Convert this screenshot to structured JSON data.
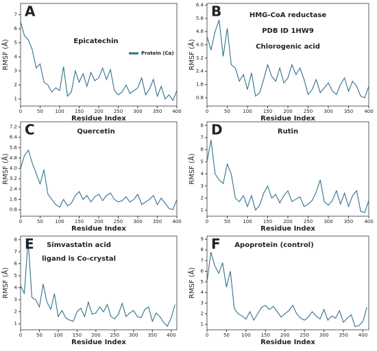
{
  "chart_data": [
    {
      "type": "line",
      "label": "A",
      "annotations": [
        "Epicatechin"
      ],
      "x_label": "Residue Index",
      "y_label": "RMSF (Å)",
      "x": [
        0,
        10,
        20,
        30,
        40,
        50,
        60,
        70,
        80,
        90,
        100,
        110,
        120,
        130,
        140,
        150,
        160,
        170,
        180,
        190,
        200,
        210,
        220,
        230,
        240,
        250,
        260,
        270,
        280,
        290,
        300,
        310,
        320,
        330,
        340,
        350,
        360,
        370,
        380,
        390,
        400
      ],
      "series": [
        {
          "name": "Protein (Cα)",
          "color": "#2f6f8c",
          "values": [
            6.5,
            5.5,
            5.2,
            4.5,
            3.2,
            3.5,
            2.2,
            2.0,
            1.5,
            1.8,
            1.6,
            3.3,
            1.2,
            1.5,
            3.0,
            2.2,
            2.8,
            1.9,
            2.9,
            2.3,
            2.5,
            3.2,
            2.4,
            3.1,
            1.6,
            1.3,
            1.5,
            2.0,
            1.4,
            1.6,
            1.8,
            2.5,
            1.3,
            1.7,
            2.4,
            1.2,
            1.9,
            1.0,
            1.3,
            0.9,
            1.6
          ]
        }
      ],
      "xlim": [
        0,
        400
      ],
      "xticks": [
        0,
        50,
        100,
        150,
        200,
        250,
        300,
        350,
        400
      ],
      "ylim": [
        0.5,
        7.8
      ],
      "yticks": [
        1,
        2,
        3,
        4,
        5,
        6,
        7
      ],
      "legend": "upper right"
    },
    {
      "type": "line",
      "label": "B",
      "annotations": [
        "HMG-CoA reductase",
        "PDB ID  1HW9",
        "Chlorogenic acid"
      ],
      "x_label": "Residue Index",
      "y_label": "RMSF (Å)",
      "x": [
        0,
        10,
        20,
        30,
        40,
        50,
        60,
        70,
        80,
        90,
        100,
        110,
        120,
        130,
        140,
        150,
        160,
        170,
        180,
        190,
        200,
        210,
        220,
        230,
        240,
        250,
        260,
        270,
        280,
        290,
        300,
        310,
        320,
        330,
        340,
        350,
        360,
        370,
        380,
        390,
        400
      ],
      "series": [
        {
          "color": "#2f6f8c",
          "values": [
            4.5,
            3.7,
            4.8,
            5.5,
            3.3,
            5.0,
            2.8,
            2.6,
            1.8,
            2.2,
            1.3,
            2.3,
            0.9,
            1.1,
            1.9,
            2.8,
            2.1,
            1.8,
            2.6,
            1.7,
            2.0,
            2.8,
            2.2,
            2.6,
            1.9,
            1.0,
            1.3,
            1.9,
            1.1,
            1.4,
            1.7,
            1.2,
            1.0,
            1.6,
            2.0,
            1.2,
            1.8,
            1.5,
            0.9,
            0.8,
            1.5
          ]
        }
      ],
      "xlim": [
        0,
        400
      ],
      "xticks": [
        0,
        50,
        100,
        150,
        200,
        250,
        300,
        350,
        400
      ],
      "ylim": [
        0.3,
        6.5
      ],
      "yticks": [
        0.8,
        1.6,
        2.4,
        3.2,
        {
          "value": 4,
          "label": "4.0"
        },
        4.8,
        5.6,
        6.4
      ]
    },
    {
      "type": "line",
      "label": "C",
      "annotations": [
        "Quercetin"
      ],
      "x_label": "Residue Index",
      "y_label": "RMSF (Å)",
      "x": [
        0,
        10,
        20,
        30,
        40,
        50,
        60,
        70,
        80,
        90,
        100,
        110,
        120,
        130,
        140,
        150,
        160,
        170,
        180,
        190,
        200,
        210,
        220,
        230,
        240,
        250,
        260,
        270,
        280,
        290,
        300,
        310,
        320,
        330,
        340,
        350,
        360,
        370,
        380,
        390,
        400
      ],
      "series": [
        {
          "color": "#2f6f8c",
          "values": [
            4.0,
            5.0,
            5.4,
            4.4,
            3.6,
            2.8,
            3.9,
            2.0,
            1.6,
            1.2,
            1.0,
            1.6,
            1.1,
            1.3,
            1.9,
            2.2,
            1.6,
            1.9,
            1.4,
            1.8,
            2.0,
            1.5,
            1.9,
            2.1,
            1.6,
            1.4,
            1.5,
            1.8,
            1.4,
            1.6,
            2.0,
            1.2,
            1.4,
            1.6,
            1.9,
            1.2,
            1.7,
            1.3,
            0.9,
            0.8,
            1.6
          ]
        }
      ],
      "xlim": [
        0,
        400
      ],
      "xticks": [
        0,
        50,
        100,
        150,
        200,
        250,
        300,
        350,
        400
      ],
      "ylim": [
        0.3,
        7.6
      ],
      "yticks": [
        0.8,
        1.6,
        2.4,
        3.2,
        {
          "value": 4,
          "label": "4.0"
        },
        4.8,
        5.6,
        6.4,
        7.2
      ]
    },
    {
      "type": "line",
      "label": "D",
      "annotations": [
        "Rutin"
      ],
      "x_label": "Residue Index",
      "y_label": "RMSF (Å)",
      "x": [
        0,
        10,
        20,
        30,
        40,
        50,
        60,
        70,
        80,
        90,
        100,
        110,
        120,
        130,
        140,
        150,
        160,
        170,
        180,
        190,
        200,
        210,
        220,
        230,
        240,
        250,
        260,
        270,
        280,
        290,
        300,
        310,
        320,
        330,
        340,
        350,
        360,
        370,
        380,
        390,
        400
      ],
      "series": [
        {
          "color": "#2f6f8c",
          "values": [
            5.0,
            6.8,
            4.0,
            3.5,
            3.2,
            4.8,
            4.0,
            2.0,
            1.7,
            2.2,
            1.3,
            2.2,
            1.0,
            1.4,
            2.4,
            3.0,
            2.0,
            2.3,
            1.6,
            2.2,
            2.6,
            1.7,
            1.9,
            2.1,
            1.3,
            1.5,
            1.8,
            2.5,
            3.5,
            1.7,
            1.4,
            1.8,
            2.6,
            1.5,
            2.4,
            1.3,
            2.2,
            2.6,
            0.9,
            0.8,
            1.8
          ]
        }
      ],
      "xlim": [
        0,
        400
      ],
      "xticks": [
        0,
        50,
        100,
        150,
        200,
        250,
        300,
        350,
        400
      ],
      "ylim": [
        0.5,
        8.3
      ],
      "yticks": [
        1,
        2,
        3,
        4,
        5,
        6,
        7,
        8
      ]
    },
    {
      "type": "line",
      "label": "E",
      "annotations": [
        "Simvastatin acid",
        "ligand is Co-crystal"
      ],
      "x_label": "Residue Index",
      "y_label": "RMSF (Å)",
      "x": [
        0,
        10,
        20,
        30,
        40,
        50,
        60,
        70,
        80,
        90,
        100,
        110,
        120,
        130,
        140,
        150,
        160,
        170,
        180,
        190,
        200,
        210,
        220,
        230,
        240,
        250,
        260,
        270,
        280,
        290,
        300,
        310,
        320,
        330,
        340,
        350,
        360,
        370,
        380,
        390,
        400,
        410
      ],
      "series": [
        {
          "color": "#2f6f8c",
          "values": [
            4.2,
            3.5,
            8.0,
            3.2,
            3.0,
            2.4,
            4.3,
            2.8,
            2.2,
            3.5,
            1.6,
            2.1,
            1.5,
            1.3,
            1.2,
            2.0,
            2.3,
            1.6,
            2.8,
            1.8,
            1.9,
            2.4,
            2.0,
            2.6,
            1.6,
            1.4,
            1.8,
            2.7,
            1.6,
            1.9,
            2.1,
            1.6,
            1.5,
            2.2,
            2.4,
            1.2,
            1.9,
            1.6,
            1.1,
            0.8,
            1.5,
            2.6
          ]
        }
      ],
      "xlim": [
        0,
        415
      ],
      "xticks": [
        0,
        50,
        100,
        150,
        200,
        250,
        300,
        350,
        400
      ],
      "ylim": [
        0.5,
        8.3
      ],
      "yticks": [
        1,
        2,
        3,
        4,
        5,
        6,
        7,
        8
      ]
    },
    {
      "type": "line",
      "label": "F",
      "annotations": [
        "Apoprotein (control)"
      ],
      "x_label": "Residue Index",
      "y_label": "RMSF (Å)",
      "x": [
        0,
        10,
        20,
        30,
        40,
        50,
        60,
        70,
        80,
        90,
        100,
        110,
        120,
        130,
        140,
        150,
        160,
        170,
        180,
        190,
        200,
        210,
        220,
        230,
        240,
        250,
        260,
        270,
        280,
        290,
        300,
        310,
        320,
        330,
        340,
        350,
        360,
        370,
        380,
        390,
        400,
        410
      ],
      "series": [
        {
          "color": "#2f6f8c",
          "values": [
            5.0,
            7.8,
            6.5,
            5.8,
            6.8,
            4.5,
            6.0,
            2.5,
            2.0,
            1.8,
            1.5,
            2.2,
            1.4,
            2.0,
            2.6,
            2.8,
            2.4,
            2.7,
            2.2,
            1.7,
            2.0,
            2.3,
            2.8,
            2.0,
            1.6,
            1.4,
            1.7,
            2.2,
            1.8,
            1.5,
            2.4,
            1.4,
            1.8,
            1.6,
            2.3,
            1.2,
            1.6,
            1.9,
            0.8,
            0.9,
            1.3,
            2.6
          ]
        }
      ],
      "xlim": [
        0,
        415
      ],
      "xticks": [
        0,
        50,
        100,
        150,
        200,
        250,
        300,
        350,
        400
      ],
      "ylim": [
        0.5,
        9.3
      ],
      "yticks": [
        1,
        2,
        3,
        4,
        5,
        6,
        7,
        8,
        9
      ]
    }
  ]
}
